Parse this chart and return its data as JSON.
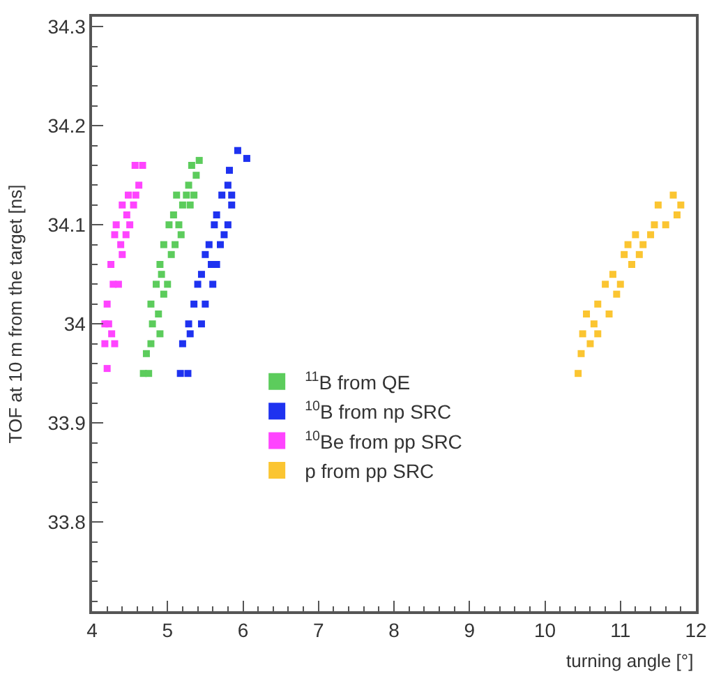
{
  "chart_data": {
    "type": "scatter",
    "xlabel": "turning angle [°]",
    "ylabel": "TOF at 10 m from the target [ns]",
    "xlim": [
      4,
      12
    ],
    "xticks": [
      4,
      5,
      6,
      7,
      8,
      9,
      10,
      11,
      12
    ],
    "ylim": [
      33.71,
      34.31
    ],
    "yticks": [
      33.8,
      33.9,
      34,
      34.1,
      34.2,
      34.3
    ],
    "legend": "bottom",
    "marker": "square",
    "series": [
      {
        "name": "$^{11}$B from QE",
        "color": "#5ccc5c",
        "x": [
          4.68,
          4.75,
          4.72,
          4.78,
          4.8,
          4.9,
          4.95,
          4.78,
          4.85,
          4.92,
          5.0,
          4.9,
          5.05,
          4.95,
          5.02,
          5.1,
          5.15,
          5.08,
          5.12,
          5.2,
          5.25,
          5.3,
          5.28,
          5.35,
          5.32,
          5.38,
          5.42,
          4.88,
          5.18
        ],
        "values": [
          33.95,
          33.95,
          33.97,
          33.98,
          34.0,
          33.99,
          34.03,
          34.02,
          34.04,
          34.05,
          34.04,
          34.06,
          34.07,
          34.08,
          34.1,
          34.08,
          34.1,
          34.11,
          34.13,
          34.12,
          34.13,
          34.12,
          34.14,
          34.13,
          34.16,
          34.15,
          34.165,
          34.01,
          34.09
        ]
      },
      {
        "name": "$^{10}$B from np SRC",
        "color": "#1e32f0",
        "x": [
          5.17,
          5.27,
          5.2,
          5.3,
          5.45,
          5.35,
          5.5,
          5.4,
          5.45,
          5.6,
          5.65,
          5.5,
          5.55,
          5.7,
          5.75,
          5.62,
          5.65,
          5.8,
          5.85,
          5.72,
          5.8,
          5.85,
          5.82,
          5.93,
          6.05,
          5.28,
          5.58
        ],
        "values": [
          33.95,
          33.95,
          33.98,
          33.99,
          34.0,
          34.02,
          34.02,
          34.04,
          34.05,
          34.04,
          34.06,
          34.07,
          34.08,
          34.08,
          34.09,
          34.1,
          34.11,
          34.1,
          34.12,
          34.13,
          34.14,
          34.13,
          34.155,
          34.175,
          34.167,
          34.0,
          34.06
        ]
      },
      {
        "name": "$^{10}$Be from pp SRC",
        "color": "#ff44ff",
        "x": [
          4.17,
          4.3,
          4.17,
          4.2,
          4.28,
          4.35,
          4.25,
          4.4,
          4.3,
          4.45,
          4.32,
          4.5,
          4.4,
          4.55,
          4.48,
          4.58,
          4.57,
          4.67,
          4.62,
          4.2,
          4.22,
          4.26,
          4.38,
          4.46
        ],
        "values": [
          33.98,
          33.98,
          34.0,
          34.02,
          34.04,
          34.04,
          34.06,
          34.07,
          34.09,
          34.09,
          34.1,
          34.1,
          34.12,
          34.12,
          34.13,
          34.13,
          34.16,
          34.16,
          34.14,
          33.955,
          34.0,
          33.99,
          34.08,
          34.11
        ]
      },
      {
        "name": "p from pp SRC",
        "color": "#fbc531",
        "x": [
          10.44,
          10.48,
          10.5,
          10.6,
          10.7,
          10.55,
          10.7,
          10.85,
          10.95,
          10.8,
          10.9,
          11.0,
          11.15,
          11.05,
          11.1,
          11.25,
          11.4,
          11.2,
          11.45,
          11.6,
          11.75,
          11.5,
          11.7,
          11.8,
          10.65,
          11.3
        ],
        "values": [
          33.95,
          33.97,
          33.99,
          33.98,
          33.99,
          34.01,
          34.02,
          34.01,
          34.03,
          34.04,
          34.05,
          34.04,
          34.06,
          34.07,
          34.08,
          34.07,
          34.09,
          34.09,
          34.1,
          34.1,
          34.11,
          34.12,
          34.13,
          34.12,
          34.0,
          34.08
        ]
      }
    ]
  }
}
